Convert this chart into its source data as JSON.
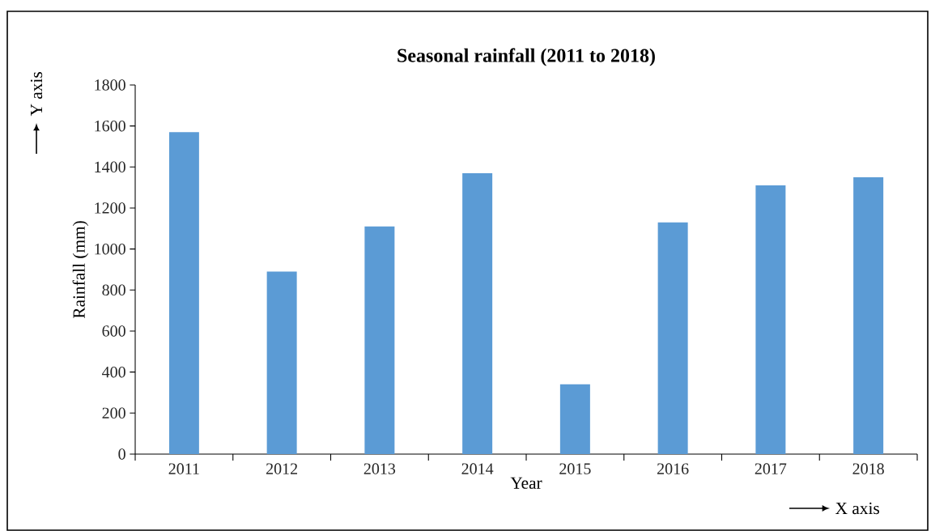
{
  "chart_data": {
    "type": "bar",
    "title": "Seasonal rainfall (2011 to 2018)",
    "xlabel": "Year",
    "ylabel": "Rainfall (mm)",
    "categories": [
      "2011",
      "2012",
      "2013",
      "2014",
      "2015",
      "2016",
      "2017",
      "2018"
    ],
    "values": [
      1570,
      890,
      1110,
      1370,
      340,
      1130,
      1310,
      1350
    ],
    "color": "#5b9bd5",
    "ylim": [
      0,
      1800
    ],
    "yticks": [
      0,
      200,
      400,
      600,
      800,
      1000,
      1200,
      1400,
      1600,
      1800
    ],
    "grid": false,
    "annotations": [
      "Y axis",
      "X axis"
    ]
  }
}
